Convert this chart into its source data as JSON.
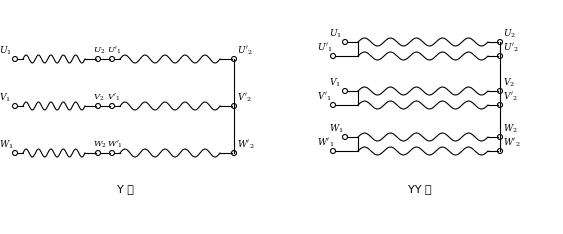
{
  "fig_width": 5.63,
  "fig_height": 2.34,
  "dpi": 100,
  "bg_color": "#ffffff",
  "line_color": "#000000",
  "line_width": 0.8,
  "title_Y": "Y 接",
  "title_YY": "YY 接",
  "title_fontsize": 8,
  "coil_amp": 4.0,
  "coil_turns": 5,
  "circle_r": 2.5
}
